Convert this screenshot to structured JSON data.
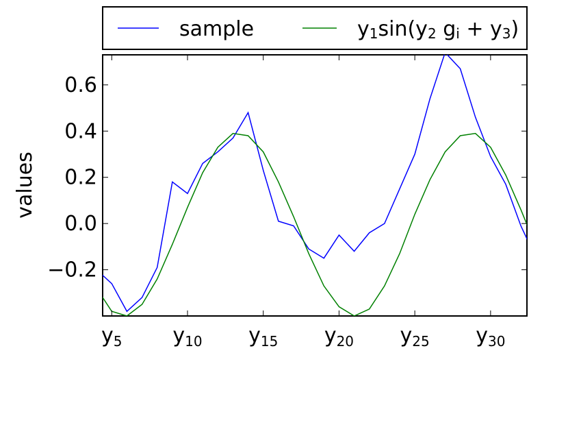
{
  "chart_data": {
    "type": "line",
    "ylabel": "values",
    "xlabel": "",
    "x_tick_labels": [
      {
        "x": 5,
        "base": "y",
        "sub": "5"
      },
      {
        "x": 10,
        "base": "y",
        "sub": "10"
      },
      {
        "x": 15,
        "base": "y",
        "sub": "15"
      },
      {
        "x": 20,
        "base": "y",
        "sub": "20"
      },
      {
        "x": 25,
        "base": "y",
        "sub": "25"
      },
      {
        "x": 30,
        "base": "y",
        "sub": "30"
      }
    ],
    "xlim": [
      4.4,
      32.4
    ],
    "ylim": [
      -0.4,
      0.73
    ],
    "y_ticks": [
      -0.2,
      0.0,
      0.2,
      0.4,
      0.6
    ],
    "y_tick_labels": [
      "−0.2",
      "0.0",
      "0.2",
      "0.4",
      "0.6"
    ],
    "x": [
      4,
      5,
      6,
      7,
      8,
      9,
      10,
      11,
      12,
      13,
      14,
      15,
      16,
      17,
      18,
      19,
      20,
      21,
      22,
      23,
      24,
      25,
      26,
      27,
      28,
      29,
      30,
      31,
      32,
      33
    ],
    "series": [
      {
        "name": "sample",
        "color": "#0000ff",
        "values": [
          -0.2,
          -0.26,
          -0.38,
          -0.32,
          -0.19,
          0.18,
          0.13,
          0.26,
          0.31,
          0.37,
          0.48,
          0.23,
          0.01,
          -0.01,
          -0.11,
          -0.15,
          -0.05,
          -0.12,
          -0.04,
          0.0,
          0.15,
          0.3,
          0.54,
          0.74,
          0.67,
          0.46,
          0.29,
          0.17,
          -0.01,
          -0.15
        ]
      },
      {
        "name": "y1sin(y2 gi + y3)",
        "color": "#008000",
        "values": [
          -0.28,
          -0.38,
          -0.4,
          -0.35,
          -0.24,
          -0.09,
          0.07,
          0.22,
          0.33,
          0.39,
          0.38,
          0.31,
          0.18,
          0.03,
          -0.13,
          -0.27,
          -0.36,
          -0.4,
          -0.37,
          -0.27,
          -0.13,
          0.04,
          0.19,
          0.31,
          0.38,
          0.39,
          0.33,
          0.21,
          0.06,
          -0.1
        ]
      }
    ],
    "legend": {
      "placement": "top",
      "entries": [
        {
          "series": 0,
          "text": "sample"
        },
        {
          "series": 1,
          "text": "y1sin(y2gi+y3)"
        }
      ]
    },
    "grid": false
  }
}
